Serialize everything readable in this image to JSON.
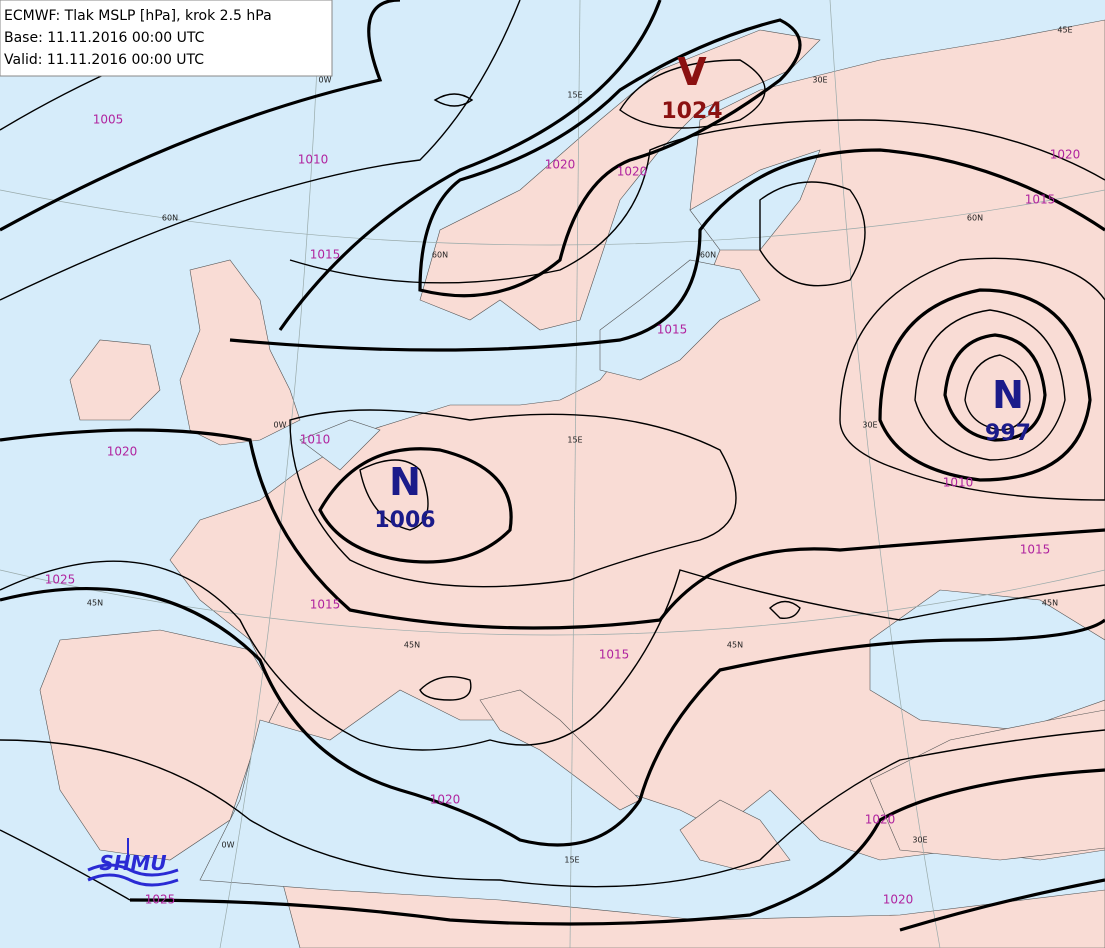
{
  "header": {
    "lines": [
      "ECMWF: Tlak MSLP [hPa], krok 2.5 hPa",
      "Base: 11.11.2016 00:00 UTC",
      "Valid: 11.11.2016 00:00 UTC"
    ]
  },
  "centers": [
    {
      "symbol": "V",
      "value": 1024
    },
    {
      "symbol": "N",
      "value": 1006
    },
    {
      "symbol": "N",
      "value": 997
    }
  ],
  "isobar_labels": [
    1005,
    1010,
    1015,
    1020,
    1020,
    1020,
    1015,
    1015,
    1010,
    1020,
    1010,
    1015,
    1025,
    1015,
    1015,
    1020,
    1020,
    1020,
    1025
  ],
  "grid_labels": [
    "0W",
    "15E",
    "30E",
    "45E",
    "60N",
    "60N",
    "60N",
    "60N",
    "0W",
    "15E",
    "30E",
    "45N",
    "45N",
    "45N",
    "45N",
    "0W",
    "15E",
    "30E"
  ],
  "logo": "SHMU"
}
